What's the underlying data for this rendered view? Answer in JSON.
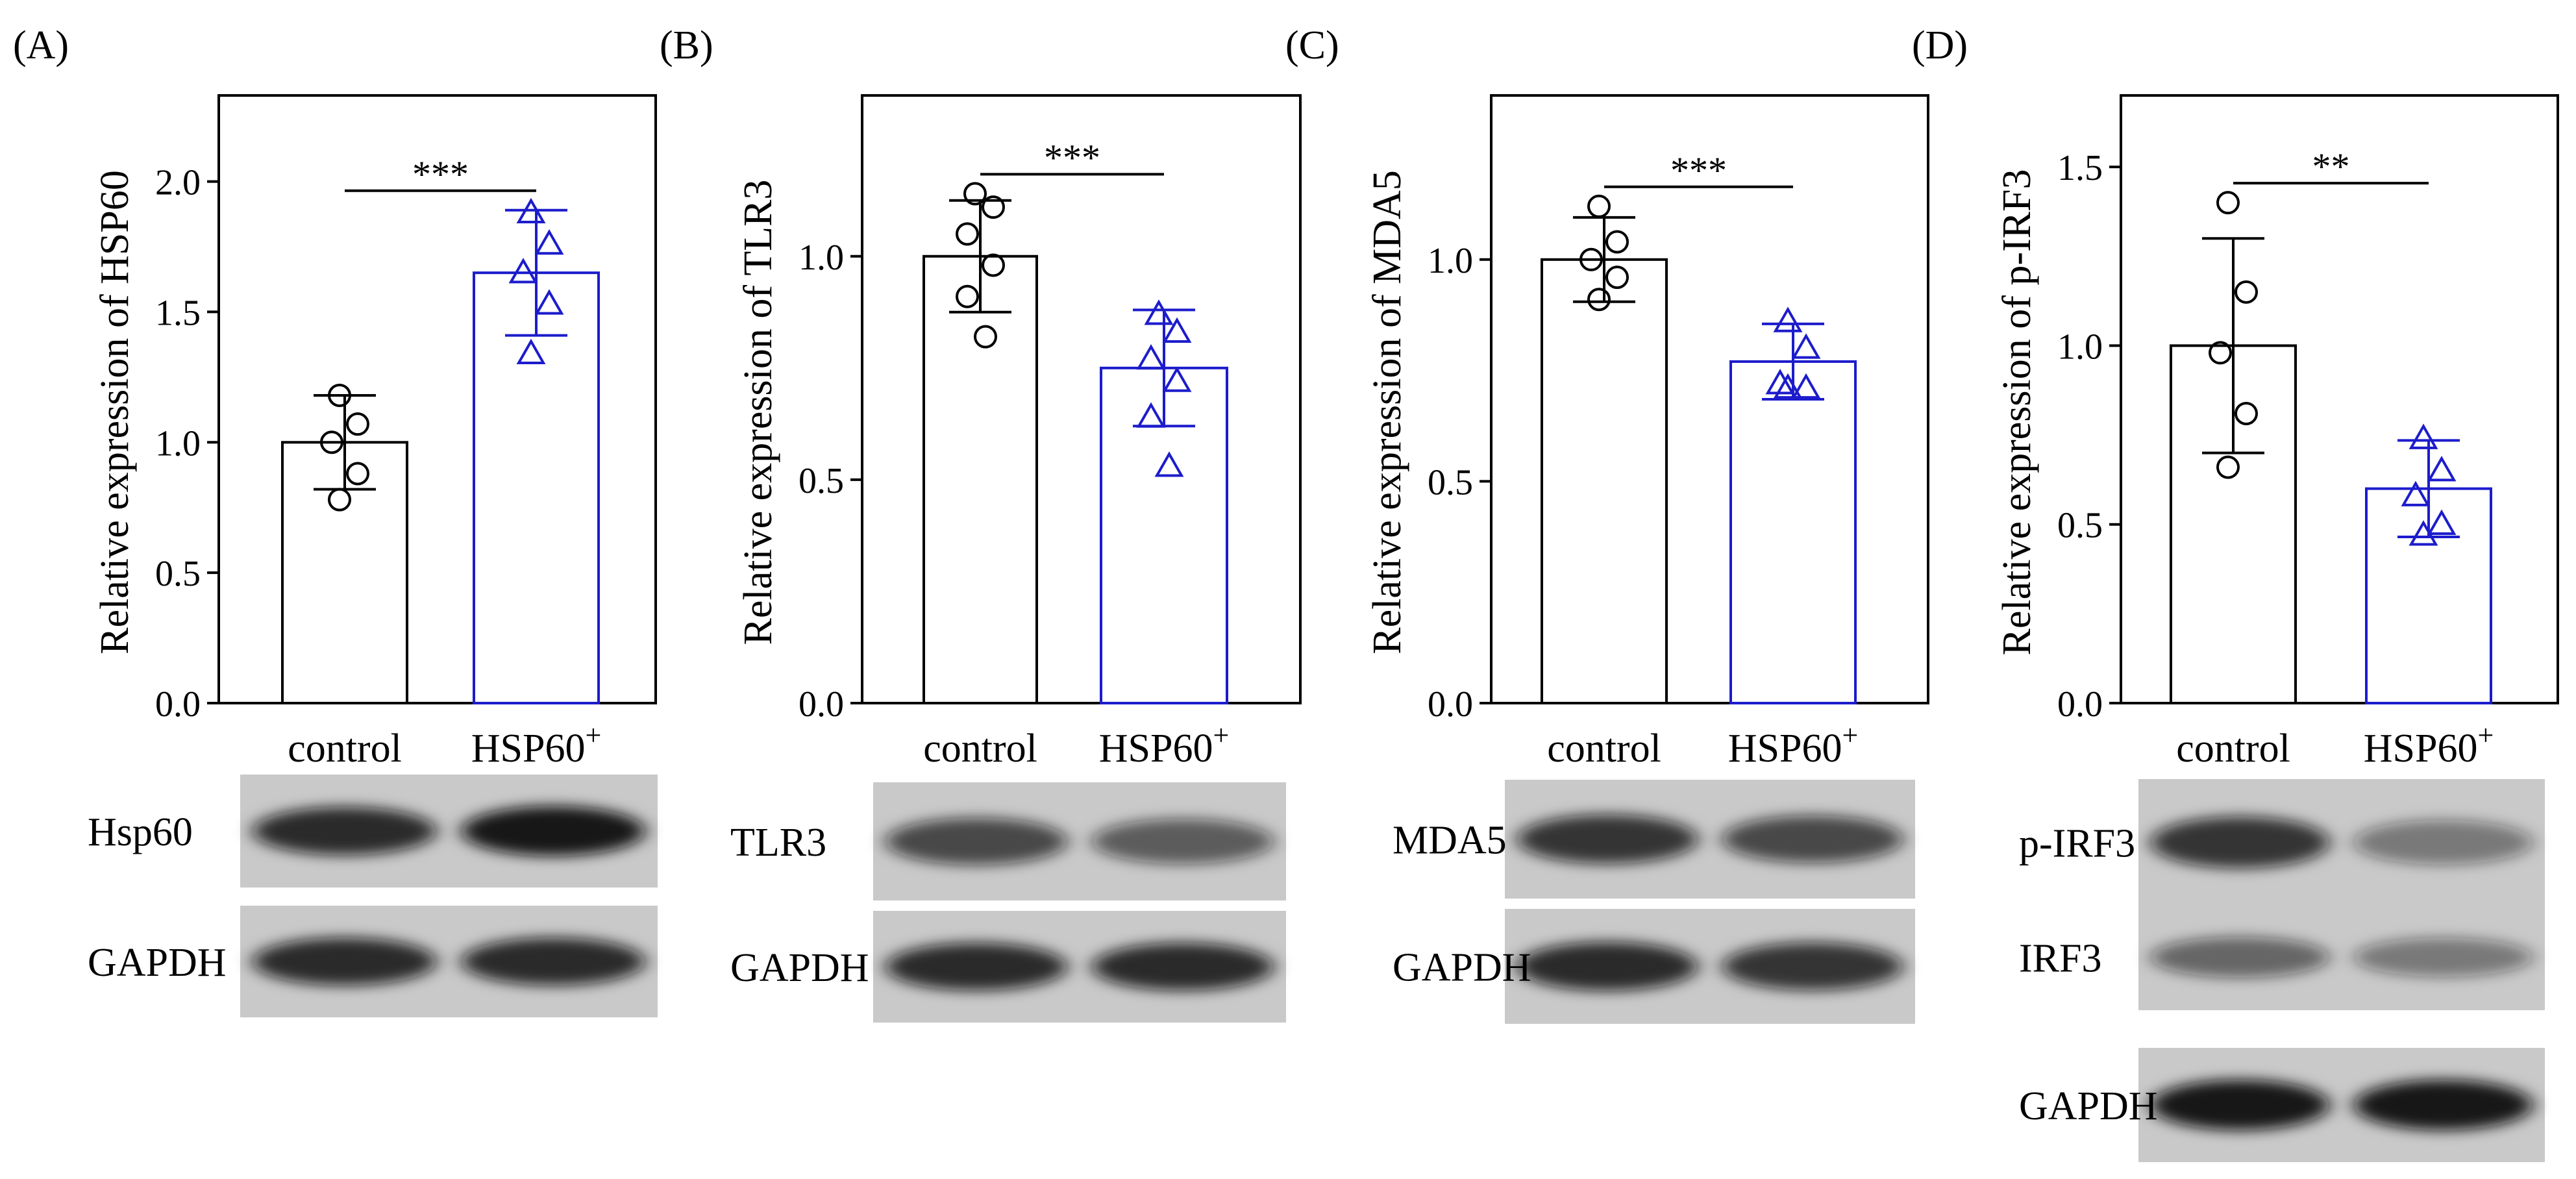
{
  "colors": {
    "control": "#000000",
    "treatment": "#1c1ccc",
    "band": "#111111"
  },
  "chart_data": [
    {
      "type": "bar",
      "panel_label": "(A)",
      "ylabel": "Relative expression of HSP60",
      "categories": [
        "control",
        "HSP60"
      ],
      "category_superscripts": [
        "",
        "+"
      ],
      "values": [
        1.0,
        1.65
      ],
      "errors": [
        0.18,
        0.24
      ],
      "points": [
        [
          1.18,
          1.07,
          1.0,
          0.88,
          0.78
        ],
        [
          1.88,
          1.76,
          1.65,
          1.53,
          1.34
        ]
      ],
      "ylim": [
        0,
        2.33
      ],
      "yticks": [
        "0.0",
        "0.5",
        "1.0",
        "1.5",
        "2.0"
      ],
      "significance": "***",
      "blot_labels": [
        "Hsp60",
        "GAPDH"
      ],
      "blot_intensity": [
        [
          0.85,
          0.95
        ],
        [
          0.85,
          0.85
        ]
      ]
    },
    {
      "type": "bar",
      "panel_label": "(B)",
      "ylabel": "Relative expression of TLR3",
      "categories": [
        "control",
        "HSP60"
      ],
      "category_superscripts": [
        "",
        "+"
      ],
      "values": [
        1.0,
        0.75
      ],
      "errors": [
        0.125,
        0.13
      ],
      "points": [
        [
          1.14,
          1.11,
          1.05,
          0.98,
          0.91,
          0.82
        ],
        [
          0.87,
          0.83,
          0.77,
          0.72,
          0.64,
          0.53
        ]
      ],
      "ylim": [
        0,
        1.36
      ],
      "yticks": [
        "0.0",
        "0.5",
        "1.0"
      ],
      "significance": "***",
      "blot_labels": [
        "TLR3",
        "GAPDH"
      ],
      "blot_intensity": [
        [
          0.7,
          0.6
        ],
        [
          0.85,
          0.85
        ]
      ]
    },
    {
      "type": "bar",
      "panel_label": "(C)",
      "ylabel": "Relative expression of MDA5",
      "categories": [
        "control",
        "HSP60"
      ],
      "category_superscripts": [
        "",
        "+"
      ],
      "values": [
        1.0,
        0.77
      ],
      "errors": [
        0.095,
        0.085
      ],
      "points": [
        [
          1.12,
          1.04,
          1.0,
          0.96,
          0.91
        ],
        [
          0.86,
          0.8,
          0.72,
          0.71,
          0.71
        ]
      ],
      "ylim": [
        0,
        1.37
      ],
      "yticks": [
        "0.0",
        "0.5",
        "1.0"
      ],
      "significance": "***",
      "blot_labels": [
        "MDA5",
        "GAPDH"
      ],
      "blot_intensity": [
        [
          0.8,
          0.7
        ],
        [
          0.85,
          0.8
        ]
      ]
    },
    {
      "type": "bar",
      "panel_label": "(D)",
      "ylabel": "Relative expression of p-IRF3",
      "categories": [
        "control",
        "HSP60"
      ],
      "category_superscripts": [
        "",
        "+"
      ],
      "values": [
        1.0,
        0.6
      ],
      "errors": [
        0.3,
        0.135
      ],
      "points": [
        [
          1.4,
          1.15,
          0.98,
          0.81,
          0.66
        ],
        [
          0.74,
          0.65,
          0.58,
          0.5,
          0.47
        ]
      ],
      "ylim": [
        0,
        1.7
      ],
      "yticks": [
        "0.0",
        "0.5",
        "1.0",
        "1.5"
      ],
      "significance": "**",
      "blot_labels": [
        "p-IRF3",
        "IRF3",
        "GAPDH"
      ],
      "blot_intensity": [
        [
          0.8,
          0.45
        ],
        [
          0.55,
          0.45
        ],
        [
          0.95,
          0.95
        ]
      ]
    }
  ]
}
